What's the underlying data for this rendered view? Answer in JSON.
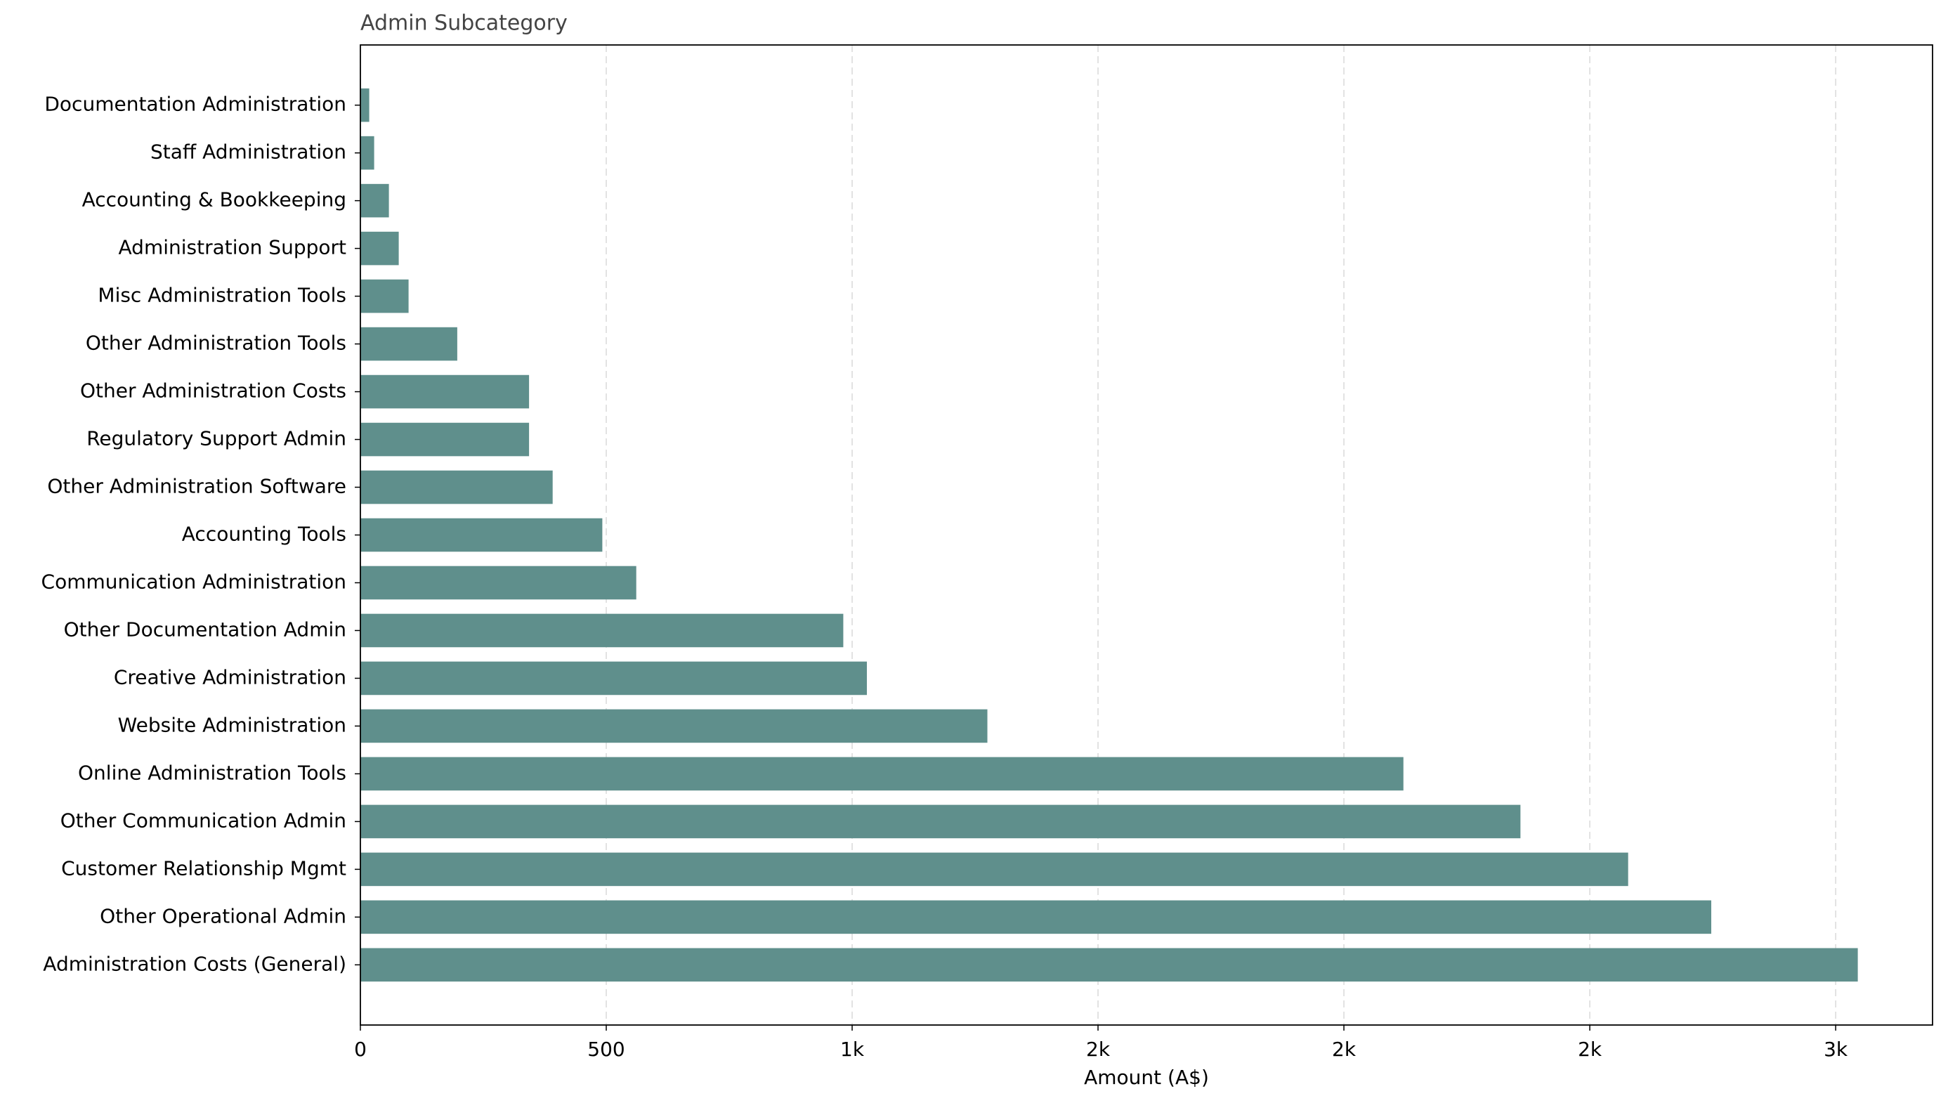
{
  "chart_data": {
    "type": "barh",
    "title": "Admin Subcategory",
    "x_label": "Amount (A$)",
    "categories": [
      "Documentation Administration",
      "Staff Administration",
      "Accounting & Bookkeeping",
      "Administration Support",
      "Misc Administration Tools",
      "Other Administration Tools",
      "Other Administration Costs",
      "Regulatory Support Admin",
      "Other Administration Software",
      "Accounting Tools",
      "Communication Administration",
      "Other Documentation Admin",
      "Creative Administration",
      "Website Administration",
      "Online Administration Tools",
      "Other Communication Admin",
      "Customer Relationship Mgmt",
      "Other Operational Admin",
      "Administration Costs (General)"
    ],
    "values": [
      18,
      28,
      58,
      78,
      98,
      197,
      343,
      343,
      391,
      492,
      561,
      982,
      1030,
      1275,
      2121,
      2359,
      2578,
      2747,
      3045
    ],
    "color": "#5f8f8c",
    "xlim": [
      0,
      3197
    ],
    "xticks": [
      0,
      500,
      {
        "value": 1000,
        "label": "1k"
      },
      {
        "value": 1500,
        "label": "2k"
      },
      {
        "value": 2000,
        "label": "2k"
      },
      {
        "value": 2500,
        "label": "2k"
      },
      {
        "value": 3000,
        "label": "3k"
      }
    ],
    "grid": true
  }
}
